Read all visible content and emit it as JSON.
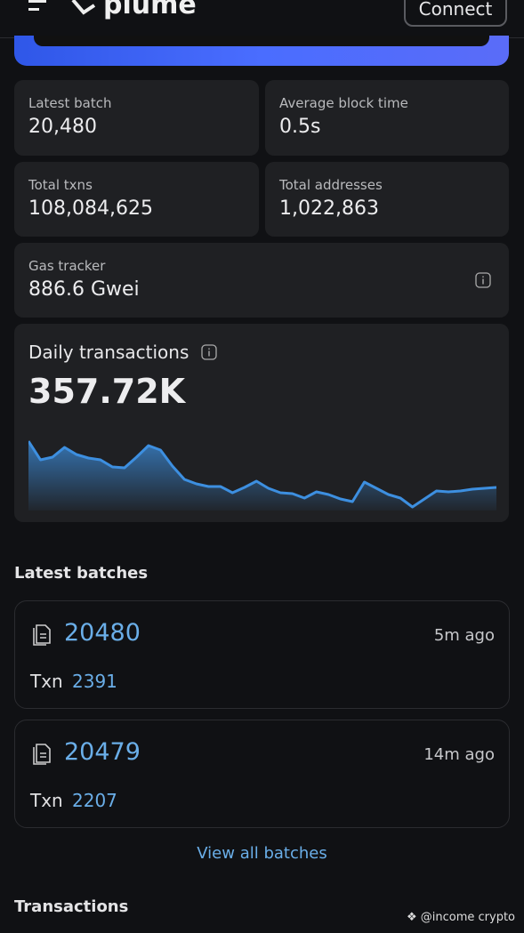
{
  "header": {
    "brand": "plume",
    "connect": "Connect"
  },
  "stats": [
    {
      "label": "Latest batch",
      "value": "20,480"
    },
    {
      "label": "Average block time",
      "value": "0.5s"
    },
    {
      "label": "Total txns",
      "value": "108,084,625"
    },
    {
      "label": "Total addresses",
      "value": "1,022,863"
    },
    {
      "label": "Gas tracker",
      "value": "886.6 Gwei"
    }
  ],
  "daily_transactions": {
    "label": "Daily transactions",
    "value": "357.72K",
    "chart": {
      "type": "line",
      "color": "#3d8fe0",
      "values": [
        75,
        54,
        57,
        68,
        60,
        56,
        54,
        46,
        45,
        57,
        70,
        65,
        47,
        32,
        27,
        24,
        24,
        17,
        23,
        30,
        22,
        17,
        16,
        11,
        18,
        15,
        10,
        7,
        29,
        22,
        15,
        11,
        1,
        10,
        19,
        18,
        19,
        21,
        22,
        23
      ]
    }
  },
  "latest_batches": {
    "title": "Latest batches",
    "items": [
      {
        "number": "20480",
        "age": "5m ago",
        "txn_label": "Txn",
        "txn": "2391"
      },
      {
        "number": "20479",
        "age": "14m ago",
        "txn_label": "Txn",
        "txn": "2207"
      }
    ],
    "view_all": "View all batches"
  },
  "transactions": {
    "title": "Transactions"
  },
  "watermark": "@income crypto"
}
